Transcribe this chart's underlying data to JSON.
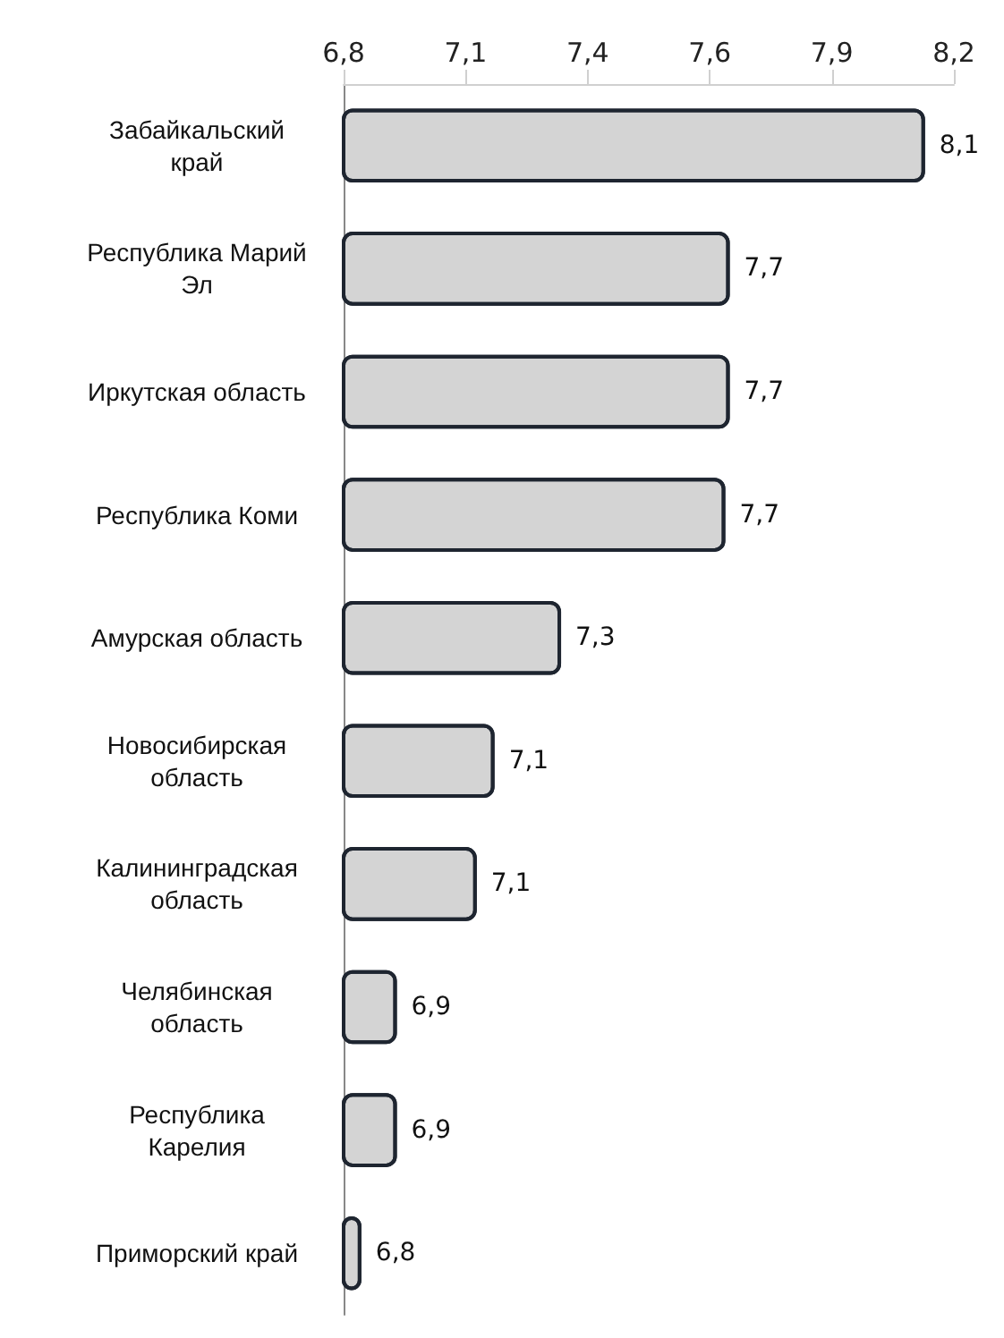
{
  "chart_data": {
    "type": "bar",
    "orientation": "horizontal",
    "categories": [
      "Забайкальский край",
      "Республика Марий Эл",
      "Иркутская область",
      "Республика Коми",
      "Амурская область",
      "Новосибирская область",
      "Калининградская область",
      "Челябинская область",
      "Республика Карелия",
      "Приморский край"
    ],
    "values": [
      8.11,
      7.67,
      7.67,
      7.66,
      7.29,
      7.14,
      7.1,
      6.92,
      6.92,
      6.84
    ],
    "value_labels": [
      "8,1",
      "7,7",
      "7,7",
      "7,7",
      "7,3",
      "7,1",
      "7,1",
      "6,9",
      "6,9",
      "6,8"
    ],
    "color": "#d4d4d4",
    "xlim": [
      6.8,
      8.175
    ],
    "xticks": [
      {
        "value": 6.8,
        "label": "6,8"
      },
      {
        "value": 7.075,
        "label": "7,1"
      },
      {
        "value": 7.35,
        "label": "7,4"
      },
      {
        "value": 7.625,
        "label": "7,6"
      },
      {
        "value": 7.9,
        "label": "7,9"
      },
      {
        "value": 8.175,
        "label": "8,2"
      }
    ],
    "grid": false
  }
}
